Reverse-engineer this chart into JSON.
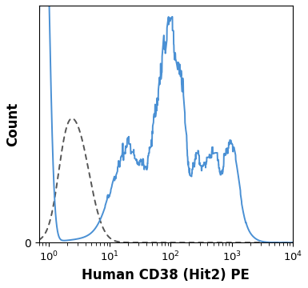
{
  "title": "",
  "xlabel": "Human CD38 (Hit2) PE",
  "ylabel": "Count",
  "xmin": 0.7,
  "xmax": 10000,
  "ymin": 0,
  "ymax": 1.05,
  "blue_color": "#4a90d4",
  "dotted_color": "#555555",
  "background_color": "#ffffff",
  "blue_linewidth": 1.4,
  "dotted_linewidth": 1.4,
  "xlabel_fontsize": 12,
  "ylabel_fontsize": 12
}
